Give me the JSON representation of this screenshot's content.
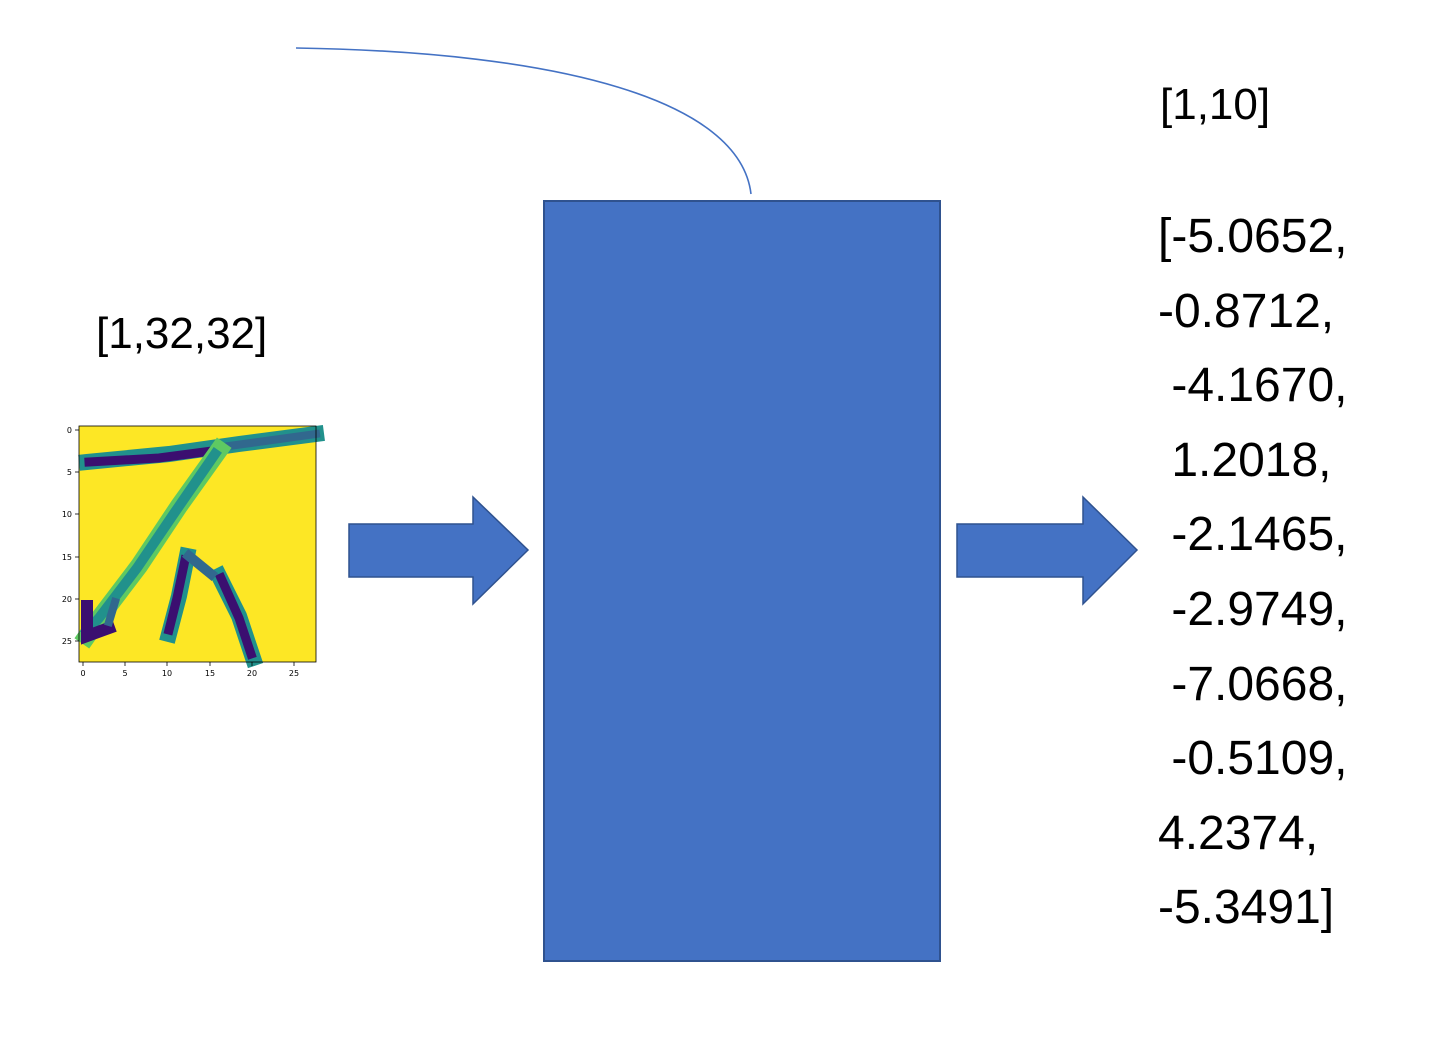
{
  "input": {
    "shape_label": "[1,32,32]",
    "x_ticks": [
      "0",
      "5",
      "10",
      "15",
      "20",
      "25"
    ],
    "y_ticks": [
      "0",
      "5",
      "10",
      "15",
      "20",
      "25"
    ]
  },
  "output": {
    "shape_label": "[1,10]",
    "values": [
      "[-5.0652,",
      "-0.8712,",
      " -4.1670,",
      " 1.2018,",
      " -2.1465,",
      " -2.9749,",
      " -7.0668,",
      " -0.5109,",
      "4.2374,",
      "-5.3491]"
    ]
  },
  "colors": {
    "block_fill": "#4472c4",
    "block_border": "#2f528f",
    "connector": "#4472c4",
    "image_background": "#fde725",
    "image_stroke_dark": "#3b0f70",
    "image_stroke_mid": "#21918c"
  }
}
